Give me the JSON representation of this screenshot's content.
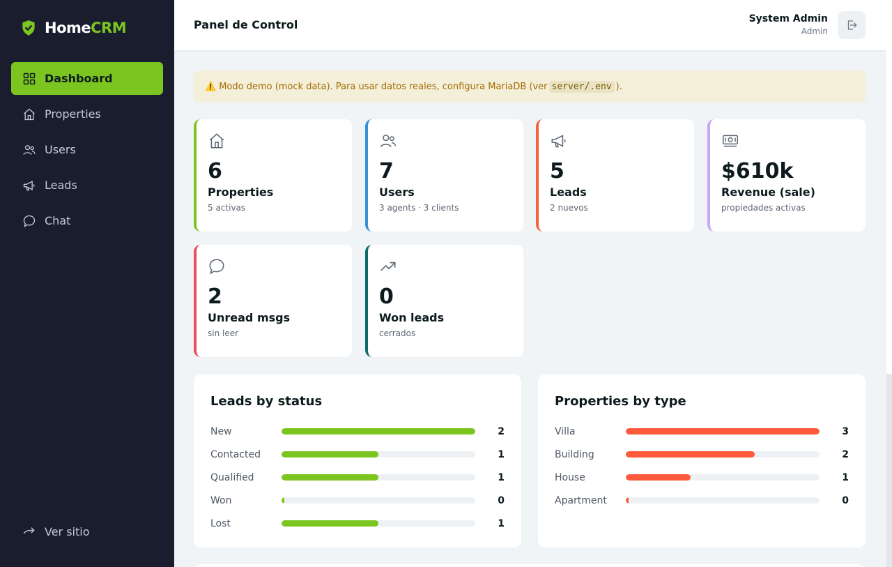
{
  "brand": {
    "name_primary": "Home",
    "name_accent": "CRM",
    "accent_color": "#7cc520"
  },
  "sidebar": {
    "items": [
      {
        "label": "Dashboard",
        "icon": "grid-icon",
        "active": true
      },
      {
        "label": "Properties",
        "icon": "house-icon",
        "active": false
      },
      {
        "label": "Users",
        "icon": "users-icon",
        "active": false
      },
      {
        "label": "Leads",
        "icon": "megaphone-icon",
        "active": false
      },
      {
        "label": "Chat",
        "icon": "chat-icon",
        "active": false
      }
    ],
    "footer_link": {
      "label": "Ver sitio",
      "icon": "arrow-right-icon"
    }
  },
  "header": {
    "title": "Panel de Control",
    "user_name": "System Admin",
    "user_role": "Admin",
    "logout_icon": "logout-icon"
  },
  "banner": {
    "icon": "⚠️",
    "text_before": "Modo demo (mock data). Para usar datos reales, configura MariaDB (ver",
    "code": "server/.env",
    "text_after": ")."
  },
  "stats": [
    {
      "value": "6",
      "label": "Properties",
      "sub": "5 activas",
      "icon": "house-icon",
      "color": "#7cc520"
    },
    {
      "value": "7",
      "label": "Users",
      "sub": "3 agents · 3 clients",
      "icon": "users-icon",
      "color": "#3a8fd9"
    },
    {
      "value": "5",
      "label": "Leads",
      "sub": "2 nuevos",
      "icon": "megaphone-icon",
      "color": "#f2643e"
    },
    {
      "value": "$610k",
      "label": "Revenue (sale)",
      "sub": "propiedades activas",
      "icon": "cash-icon",
      "color": "#c9a6f5"
    },
    {
      "value": "2",
      "label": "Unread msgs",
      "sub": "sin leer",
      "icon": "chat-icon",
      "color": "#ee4a5a"
    },
    {
      "value": "0",
      "label": "Won leads",
      "sub": "cerrados",
      "icon": "trend-up-icon",
      "color": "#0f6b6b"
    }
  ],
  "leads_panel": {
    "title": "Leads by status",
    "color": "#7cc520",
    "max": 2,
    "rows": [
      {
        "label": "New",
        "count": 2
      },
      {
        "label": "Contacted",
        "count": 1
      },
      {
        "label": "Qualified",
        "count": 1
      },
      {
        "label": "Won",
        "count": 0
      },
      {
        "label": "Lost",
        "count": 1
      }
    ]
  },
  "properties_panel": {
    "title": "Properties by type",
    "color": "#ff5a3c",
    "max": 3,
    "rows": [
      {
        "label": "Villa",
        "count": 3
      },
      {
        "label": "Building",
        "count": 2
      },
      {
        "label": "House",
        "count": 1
      },
      {
        "label": "Apartment",
        "count": 0
      }
    ]
  }
}
